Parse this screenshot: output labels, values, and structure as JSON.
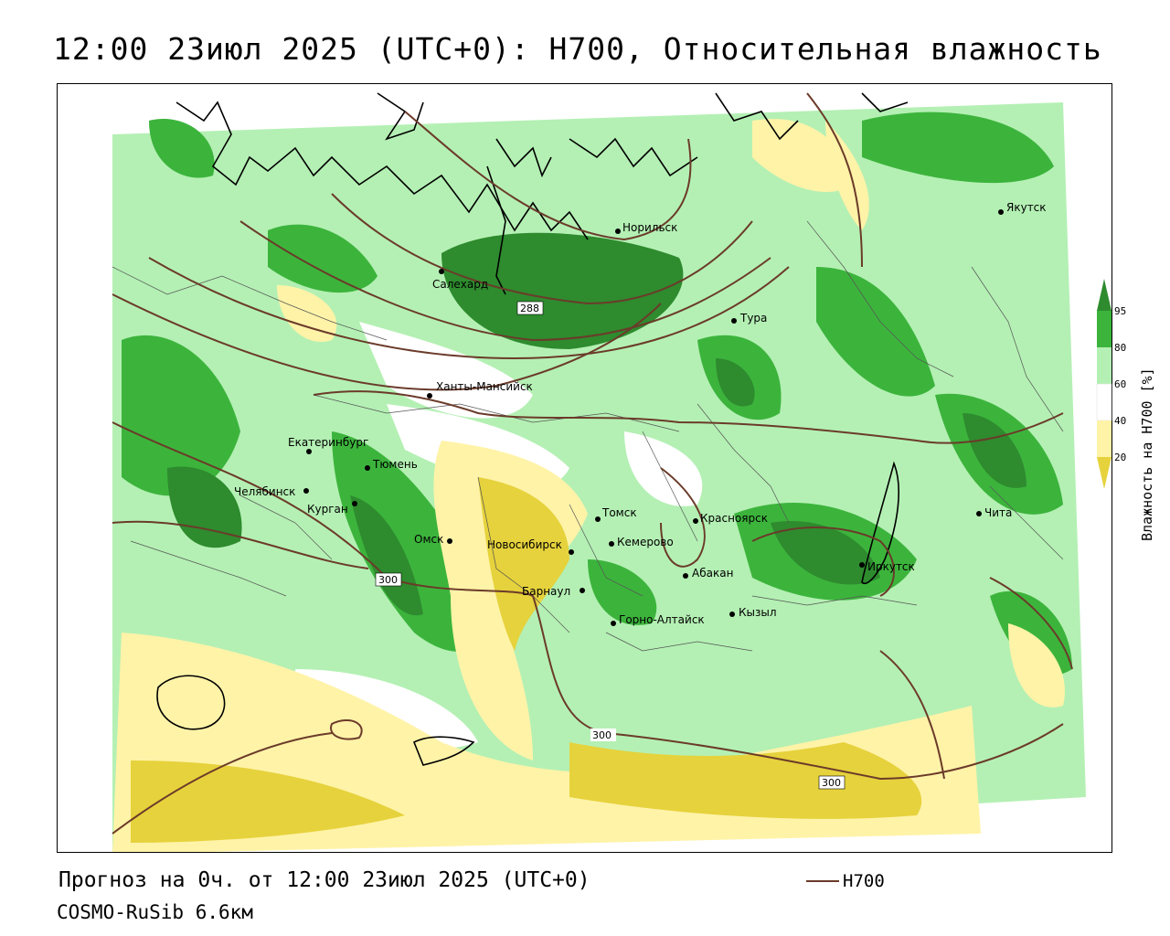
{
  "title": "12:00 23июл 2025 (UTC+0): H700, Относительная влажность",
  "footer": {
    "forecast": "Прогноз на 0ч. от 12:00 23июл 2025 (UTC+0)",
    "model": "COSMO-RuSib 6.6км",
    "legend_h700": "H700"
  },
  "colorbar": {
    "title": "Влажность на H700 [%]",
    "ticks": [
      "95",
      "80",
      "60",
      "40",
      "20"
    ],
    "colors": {
      "c95": "#2e8b2e",
      "c80": "#3cb43c",
      "c60": "#b4f0b4",
      "c40": "#ffffff",
      "c20": "#fff3a8",
      "c0": "#e6d23c"
    }
  },
  "isolines": {
    "color": "#6b3b2a",
    "labels": [
      "288",
      "300",
      "300",
      "300"
    ]
  },
  "cities": [
    {
      "name": "Якутск"
    },
    {
      "name": "Норильск"
    },
    {
      "name": "Салехард"
    },
    {
      "name": "Тура"
    },
    {
      "name": "Ханты-Мансийск"
    },
    {
      "name": "Екатеринбург"
    },
    {
      "name": "Тюмень"
    },
    {
      "name": "Челябинск"
    },
    {
      "name": "Курган"
    },
    {
      "name": "Омск"
    },
    {
      "name": "Новосибирск"
    },
    {
      "name": "Томск"
    },
    {
      "name": "Кемерово"
    },
    {
      "name": "Красноярск"
    },
    {
      "name": "Абакан"
    },
    {
      "name": "Барнаул"
    },
    {
      "name": "Горно-Алтайск"
    },
    {
      "name": "Кызыл"
    },
    {
      "name": "Иркутск"
    },
    {
      "name": "Чита"
    }
  ]
}
